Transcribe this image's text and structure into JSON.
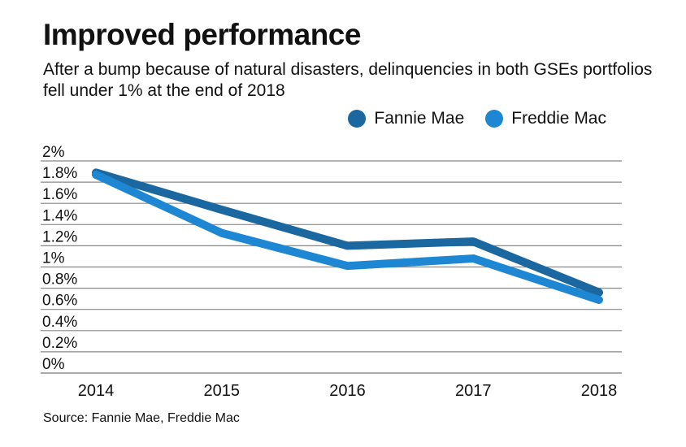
{
  "chart_data": {
    "type": "line",
    "title": "Improved performance",
    "subtitle": "After a bump because of natural disasters, delinquencies in both GSEs portfolios fell under 1% at the end of 2018",
    "categories": [
      "2014",
      "2015",
      "2016",
      "2017",
      "2018"
    ],
    "series": [
      {
        "name": "Fannie Mae",
        "color": "#1b679f",
        "values": [
          1.89,
          1.54,
          1.2,
          1.24,
          0.76
        ]
      },
      {
        "name": "Freddie Mac",
        "color": "#1d87d3",
        "values": [
          1.87,
          1.32,
          1.01,
          1.08,
          0.69
        ]
      }
    ],
    "ylim": [
      0,
      2
    ],
    "yticks": [
      "0%",
      "0.2%",
      "0.4%",
      "0.6%",
      "0.8%",
      "1%",
      "1.2%",
      "1.4%",
      "1.6%",
      "1.8%",
      "2%"
    ],
    "grid": true,
    "legend": "top-right",
    "source": "Source: Fannie Mae, Freddie Mac"
  }
}
